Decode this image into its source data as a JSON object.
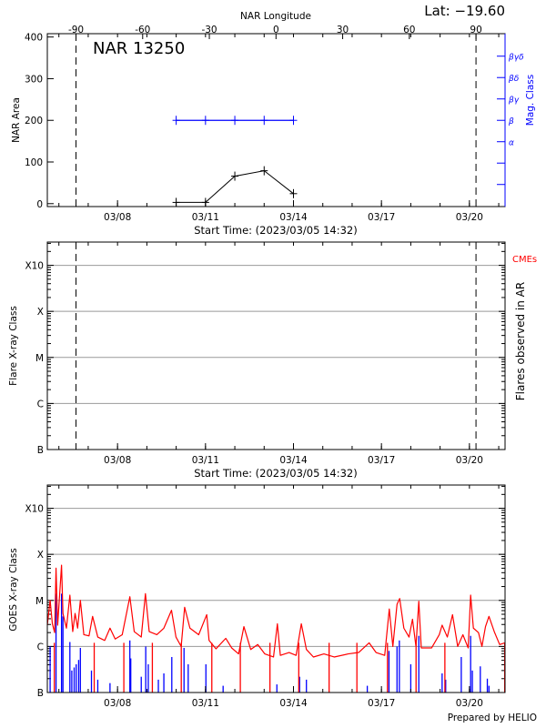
{
  "header": {
    "lat_label": "Lat: −19.60"
  },
  "footer": {
    "credit": "Prepared by HELIO"
  },
  "colors": {
    "goes_long": "#ff0000",
    "goes_short": "#0000ff",
    "mag_class": "#0000ff",
    "grid": "#999999",
    "cme": "#ff0000"
  },
  "chart_data": [
    {
      "type": "line",
      "title": "NAR 13250",
      "top_axis": {
        "label": "NAR Longitude",
        "ticks": [
          -90,
          -60,
          -30,
          0,
          30,
          60,
          90
        ],
        "range": [
          -103,
          103
        ]
      },
      "xlabel": "Start Time: (2023/03/05 14:32)",
      "xlim": [
        "03/05 14:32",
        "03/21 05:10"
      ],
      "x_ticks": [
        "03/08",
        "03/11",
        "03/14",
        "03/17",
        "03/20"
      ],
      "ylabel": "NAR Area",
      "ylim": [
        -7,
        408
      ],
      "y_ticks": [
        0,
        100,
        200,
        300,
        400
      ],
      "right_axis": {
        "label": "Mag. Class",
        "ticks": [
          "",
          "",
          "α",
          "β",
          "βγ",
          "βδ",
          "βγδ"
        ]
      },
      "reference_lines_longitude": [
        -90,
        90
      ],
      "series": [
        {
          "kind": "area",
          "color": "#000000",
          "points": [
            [
              "03/10 00:00",
              3
            ],
            [
              "03/11 00:00",
              3
            ],
            [
              "03/12 00:00",
              66
            ],
            [
              "03/13 00:00",
              79
            ],
            [
              "03/14 00:00",
              24
            ]
          ]
        },
        {
          "kind": "mag_class",
          "color": "#0000ff",
          "points": [
            [
              "03/10 00:00",
              "β"
            ],
            [
              "03/11 00:00",
              "β"
            ],
            [
              "03/12 00:00",
              "β"
            ],
            [
              "03/13 00:00",
              "β"
            ],
            [
              "03/14 00:00",
              "β"
            ]
          ]
        }
      ]
    },
    {
      "type": "scatter",
      "xlabel": "Start Time: (2023/03/05 14:32)",
      "xlim": [
        "03/05 14:32",
        "03/21 05:10"
      ],
      "x_ticks": [
        "03/08",
        "03/11",
        "03/14",
        "03/17",
        "03/20"
      ],
      "ylabel": "Flare X-ray Class",
      "right_label": "Flares observed in AR",
      "legend": "CMEs",
      "y_scale": "log",
      "ylim": [
        1e-07,
        0.0032
      ],
      "y_ticks": [
        [
          "B",
          1e-07
        ],
        [
          "C",
          1e-06
        ],
        [
          "M",
          1e-05
        ],
        [
          "X",
          0.0001
        ],
        [
          "X10",
          0.001
        ]
      ],
      "grid": true,
      "reference_lines_longitude": [
        -90,
        90
      ],
      "series": []
    },
    {
      "type": "line",
      "xlim": [
        "03/05 14:32",
        "03/21 05:10"
      ],
      "x_ticks": [
        "03/08",
        "03/11",
        "03/14",
        "03/17",
        "03/20"
      ],
      "ylabel": "GOES X-ray Class",
      "y_scale": "log",
      "ylim": [
        1e-07,
        0.0032
      ],
      "y_ticks": [
        [
          "B",
          1e-07
        ],
        [
          "C",
          1e-06
        ],
        [
          "M",
          1e-05
        ],
        [
          "X",
          0.0001
        ],
        [
          "X10",
          0.001
        ]
      ],
      "grid": true,
      "series": [
        {
          "kind": "long_channel",
          "color": "#ff0000",
          "points": [
            [
              "03/05 14:32",
              2.9e-06
            ],
            [
              "03/05 16:50",
              1e-05
            ],
            [
              "03/05 18:40",
              3.1e-06
            ],
            [
              "03/05 20:31",
              2e-06
            ],
            [
              "03/05 21:40",
              5e-05
            ],
            [
              "03/05 23:00",
              2.9e-06
            ],
            [
              "03/06 02:10",
              5.8e-05
            ],
            [
              "03/06 03:20",
              5.2e-06
            ],
            [
              "03/06 06:10",
              2.5e-06
            ],
            [
              "03/06 09:00",
              1.3e-05
            ],
            [
              "03/06 11:20",
              2.1e-06
            ],
            [
              "03/06 13:15",
              5.2e-06
            ],
            [
              "03/06 15:20",
              2.5e-06
            ],
            [
              "03/06 17:35",
              1e-05
            ],
            [
              "03/06 20:25",
              1.8e-06
            ],
            [
              "03/07 00:40",
              1.7e-06
            ],
            [
              "03/07 03:35",
              4.5e-06
            ],
            [
              "03/07 07:50",
              1.6e-06
            ],
            [
              "03/07 13:30",
              1.35e-06
            ],
            [
              "03/07 17:50",
              2.5e-06
            ],
            [
              "03/07 22:05",
              1.45e-06
            ],
            [
              "03/08 03:50",
              1.8e-06
            ],
            [
              "03/08 10:05",
              1.2e-05
            ],
            [
              "03/08 13:40",
              2.1e-06
            ],
            [
              "03/08 19:25",
              1.6e-06
            ],
            [
              "03/08 22:50",
              1.4e-05
            ],
            [
              "03/09 01:55",
              2.1e-06
            ],
            [
              "03/09 08:10",
              1.8e-06
            ],
            [
              "03/09 13:55",
              2.5e-06
            ],
            [
              "03/09 20:10",
              6.1e-06
            ],
            [
              "03/09 23:50",
              1.6e-06
            ],
            [
              "03/10 04:05",
              1e-06
            ],
            [
              "03/10 06:55",
              7.1e-06
            ],
            [
              "03/10 11:15",
              2.5e-06
            ],
            [
              "03/10 18:25",
              1.8e-06
            ],
            [
              "03/11 01:00",
              4.9e-06
            ],
            [
              "03/11 02:55",
              1.35e-06
            ],
            [
              "03/11 08:35",
              8.9e-07
            ],
            [
              "03/11 16:35",
              1.5e-06
            ],
            [
              "03/11 21:25",
              9.3e-07
            ],
            [
              "03/12 03:05",
              6.9e-07
            ],
            [
              "03/12 07:25",
              2.7e-06
            ],
            [
              "03/12 13:00",
              8.6e-07
            ],
            [
              "03/12 18:45",
              1.1e-06
            ],
            [
              "03/13 00:30",
              6.9e-07
            ],
            [
              "03/13 07:40",
              5.9e-07
            ],
            [
              "03/13 10:50",
              3.1e-06
            ],
            [
              "03/13 13:15",
              6.4e-07
            ],
            [
              "03/13 20:25",
              7.4e-07
            ],
            [
              "03/14 02:10",
              6.4e-07
            ],
            [
              "03/14 06:25",
              3.1e-06
            ],
            [
              "03/14 10:35",
              8.6e-07
            ],
            [
              "03/14 16:20",
              5.9e-07
            ],
            [
              "03/15 00:55",
              6.9e-07
            ],
            [
              "03/15 09:20",
              5.9e-07
            ],
            [
              "03/15 20:50",
              6.9e-07
            ],
            [
              "03/16 05:20",
              7.4e-07
            ],
            [
              "03/16 13:55",
              1.2e-06
            ],
            [
              "03/16 19:35",
              7.4e-07
            ],
            [
              "03/17 02:40",
              6.4e-07
            ],
            [
              "03/17 06:25",
              6.5e-06
            ],
            [
              "03/17 09:20",
              1e-06
            ],
            [
              "03/17 12:45",
              8.2e-06
            ],
            [
              "03/17 14:55",
              1.1e-05
            ],
            [
              "03/17 18:20",
              2.5e-06
            ],
            [
              "03/17 22:35",
              1.6e-06
            ],
            [
              "03/18 01:25",
              3.9e-06
            ],
            [
              "03/18 04:15",
              1e-06
            ],
            [
              "03/18 06:35",
              9.6e-06
            ],
            [
              "03/18 08:35",
              9.3e-07
            ],
            [
              "03/18 17:05",
              9.3e-07
            ],
            [
              "03/18 23:20",
              1.8e-06
            ],
            [
              "03/19 01:40",
              2.9e-06
            ],
            [
              "03/19 05:55",
              1.6e-06
            ],
            [
              "03/19 10:10",
              4.9e-06
            ],
            [
              "03/19 14:25",
              1e-06
            ],
            [
              "03/19 18:40",
              1.8e-06
            ],
            [
              "03/19 23:00",
              9.3e-07
            ],
            [
              "03/20 01:00",
              1.3e-05
            ],
            [
              "03/20 03:15",
              2.5e-06
            ],
            [
              "03/20 07:25",
              2e-06
            ],
            [
              "03/20 10:15",
              1e-06
            ],
            [
              "03/20 13:10",
              2.7e-06
            ],
            [
              "03/20 16:00",
              4.5e-06
            ],
            [
              "03/20 20:20",
              2.1e-06
            ],
            [
              "03/21 00:45",
              1.1e-06
            ],
            [
              "03/21 05:00",
              1.2e-06
            ]
          ],
          "dropouts": [
            "03/05 20:15",
            "03/07 04:55",
            "03/08 05:10",
            "03/09 04:30",
            "03/10 04:10",
            "03/11 05:10",
            "03/12 04:30",
            "03/13 04:45",
            "03/14 04:20",
            "03/15 05:10",
            "03/16 03:55",
            "03/17 04:55",
            "03/18 04:20",
            "03/19 03:55",
            "03/21 04:55"
          ]
        },
        {
          "kind": "short_channel",
          "color": "#0000ff",
          "spikes": [
            [
              "03/05 16:50",
              1e-06
            ],
            [
              "03/05 21:40",
              1.4e-05
            ],
            [
              "03/06 02:10",
              1.4e-05
            ],
            [
              "03/06 03:20",
              4.5e-06
            ],
            [
              "03/06 09:00",
              1.25e-06
            ],
            [
              "03/06 10:35",
              3e-07
            ],
            [
              "03/06 12:30",
              3.5e-07
            ],
            [
              "03/06 14:10",
              4.1e-07
            ],
            [
              "03/06 16:10",
              5.1e-07
            ],
            [
              "03/06 17:35",
              9.3e-07
            ],
            [
              "03/07 02:40",
              3e-07
            ],
            [
              "03/07 07:50",
              1.9e-07
            ],
            [
              "03/07 17:50",
              1.6e-07
            ],
            [
              "03/08 10:05",
              1.35e-06
            ],
            [
              "03/08 10:50",
              5.5e-07
            ],
            [
              "03/08 19:25",
              2.2e-07
            ],
            [
              "03/08 23:05",
              1e-06
            ],
            [
              "03/09 01:10",
              4.1e-07
            ],
            [
              "03/09 09:25",
              1.9e-07
            ],
            [
              "03/09 13:55",
              2.6e-07
            ],
            [
              "03/09 20:25",
              5.9e-07
            ],
            [
              "03/10 06:25",
              9.3e-07
            ],
            [
              "03/10 09:50",
              4.1e-07
            ],
            [
              "03/11 00:20",
              4.1e-07
            ],
            [
              "03/11 14:25",
              1.4e-07
            ],
            [
              "03/13 10:25",
              1.5e-07
            ],
            [
              "03/14 05:00",
              2.2e-07
            ],
            [
              "03/14 10:35",
              1.9e-07
            ],
            [
              "03/16 12:25",
              1.4e-07
            ],
            [
              "03/17 06:10",
              8e-07
            ],
            [
              "03/17 12:45",
              1e-06
            ],
            [
              "03/17 14:40",
              1.35e-06
            ],
            [
              "03/18 00:00",
              4.1e-07
            ],
            [
              "03/18 06:35",
              1.7e-06
            ],
            [
              "03/19 01:40",
              2.6e-07
            ],
            [
              "03/19 04:35",
              1.9e-07
            ],
            [
              "03/19 17:20",
              5.9e-07
            ],
            [
              "03/20 01:00",
              1.7e-06
            ],
            [
              "03/20 02:25",
              3e-07
            ],
            [
              "03/20 08:55",
              3.7e-07
            ],
            [
              "03/20 14:40",
              2e-07
            ],
            [
              "03/20 16:00",
              1.4e-07
            ]
          ]
        }
      ]
    }
  ]
}
